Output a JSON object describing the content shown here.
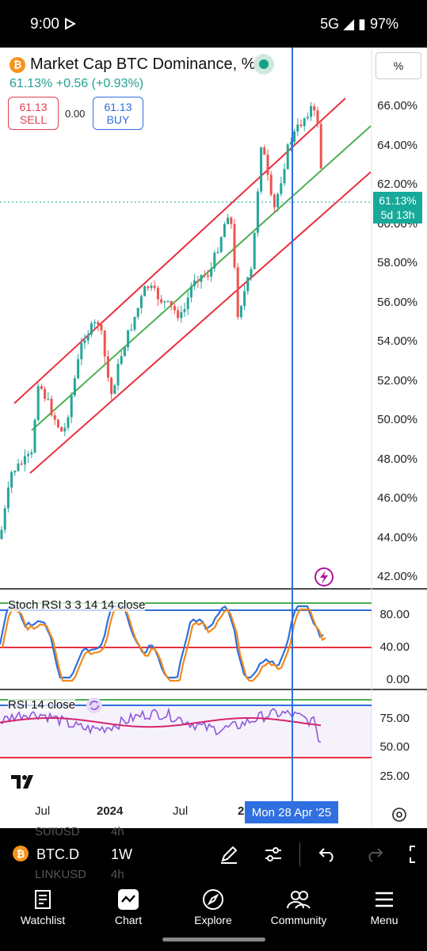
{
  "status_bar": {
    "time": "9:00",
    "network": "5G",
    "battery": "97%"
  },
  "header": {
    "title": "Market Cap BTC Dominance, %",
    "symbol_badge": "₿",
    "last": "61.13%",
    "change": "+0.56",
    "change_pct": "(+0.93%)",
    "sell_price": "61.13",
    "sell_label": "SELL",
    "spread": "0.00",
    "buy_price": "61.13",
    "buy_label": "BUY",
    "scale_button": "%"
  },
  "price_tag": {
    "value": "61.13%",
    "countdown": "5d 13h"
  },
  "price_axis": [
    "66.00%",
    "64.00%",
    "62.00%",
    "60.00%",
    "58.00%",
    "56.00%",
    "54.00%",
    "52.00%",
    "50.00%",
    "48.00%",
    "46.00%",
    "44.00%",
    "42.00%"
  ],
  "stoch_rsi": {
    "title": "Stoch RSI 3 3 14 14 close",
    "axis": [
      "80.00",
      "40.00",
      "0.00"
    ]
  },
  "rsi": {
    "title": "RSI 14 close",
    "axis": [
      "75.00",
      "50.00",
      "25.00"
    ]
  },
  "time_axis": {
    "labels": [
      "Jul",
      "2024",
      "Jul",
      "2"
    ],
    "crosshair": "Mon 28 Apr '25"
  },
  "toolbar": {
    "symbol": "BTC.D",
    "interval": "1W",
    "ghost_1": "SUIUSD",
    "ghost_1b": "4h",
    "ghost_2": "LINKUSD",
    "ghost_2b": "4h"
  },
  "nav": [
    {
      "label": "Watchlist"
    },
    {
      "label": "Chart"
    },
    {
      "label": "Explore"
    },
    {
      "label": "Community"
    },
    {
      "label": "Menu"
    }
  ],
  "colors": {
    "up": "#26a69a",
    "down": "#ef5350",
    "channel": "#e8303f",
    "midline": "#4caf50",
    "crosshair": "#2f6fe0",
    "rsi": "#8e5ad8"
  }
}
